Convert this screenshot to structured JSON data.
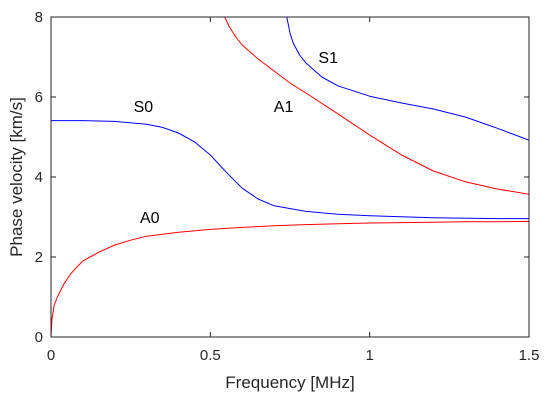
{
  "chart_data": {
    "type": "line",
    "title": "",
    "xlabel": "Frequency [MHz]",
    "ylabel": "Phase velocity [km/s]",
    "xlim": [
      0,
      1.5
    ],
    "ylim": [
      0,
      8
    ],
    "xticks": [
      0,
      0.5,
      1,
      1.5
    ],
    "xtick_labels": [
      "0",
      "0.5",
      "1",
      "1.5"
    ],
    "yticks": [
      0,
      2,
      4,
      6,
      8
    ],
    "ytick_labels": [
      "0",
      "2",
      "4",
      "6",
      "8"
    ],
    "grid": false,
    "legend": "none",
    "colors": {
      "symmetric": "#0000ff",
      "antisymmetric": "#ff0000",
      "axis": "#262626"
    },
    "series": [
      {
        "name": "A0",
        "color": "#ff0000",
        "x": [
          0.0,
          0.003,
          0.01,
          0.02,
          0.04,
          0.06,
          0.08,
          0.1,
          0.15,
          0.2,
          0.25,
          0.3,
          0.4,
          0.5,
          0.6,
          0.7,
          0.8,
          0.9,
          1.0,
          1.1,
          1.2,
          1.3,
          1.4,
          1.5
        ],
        "y": [
          0.0,
          0.45,
          0.8,
          1.0,
          1.32,
          1.56,
          1.74,
          1.9,
          2.12,
          2.3,
          2.42,
          2.52,
          2.62,
          2.69,
          2.74,
          2.78,
          2.81,
          2.83,
          2.85,
          2.86,
          2.87,
          2.88,
          2.88,
          2.89
        ]
      },
      {
        "name": "S0",
        "color": "#0000ff",
        "x": [
          0.0,
          0.1,
          0.2,
          0.3,
          0.35,
          0.4,
          0.45,
          0.5,
          0.55,
          0.6,
          0.65,
          0.7,
          0.8,
          0.9,
          1.0,
          1.2,
          1.4,
          1.5
        ],
        "y": [
          5.41,
          5.41,
          5.39,
          5.32,
          5.24,
          5.1,
          4.88,
          4.55,
          4.12,
          3.72,
          3.45,
          3.28,
          3.14,
          3.07,
          3.03,
          2.98,
          2.96,
          2.96
        ]
      },
      {
        "name": "A1",
        "color": "#ff0000",
        "x": [
          0.545,
          0.56,
          0.58,
          0.6,
          0.65,
          0.7,
          0.75,
          0.8,
          0.9,
          1.0,
          1.1,
          1.2,
          1.3,
          1.4,
          1.5
        ],
        "y": [
          8.0,
          7.75,
          7.5,
          7.3,
          6.95,
          6.65,
          6.35,
          6.1,
          5.58,
          5.05,
          4.55,
          4.15,
          3.88,
          3.7,
          3.57
        ]
      },
      {
        "name": "S1",
        "color": "#0000ff",
        "x": [
          0.74,
          0.75,
          0.76,
          0.78,
          0.8,
          0.85,
          0.9,
          1.0,
          1.1,
          1.2,
          1.3,
          1.4,
          1.5
        ],
        "y": [
          8.0,
          7.6,
          7.35,
          7.05,
          6.85,
          6.5,
          6.28,
          6.02,
          5.85,
          5.7,
          5.5,
          5.22,
          4.92
        ]
      }
    ],
    "annotations": [
      {
        "text": "S0",
        "x": 0.29,
        "y": 5.73
      },
      {
        "text": "A1",
        "x": 0.73,
        "y": 5.73
      },
      {
        "text": "S1",
        "x": 0.87,
        "y": 6.95
      },
      {
        "text": "A0",
        "x": 0.31,
        "y": 2.95
      }
    ]
  }
}
